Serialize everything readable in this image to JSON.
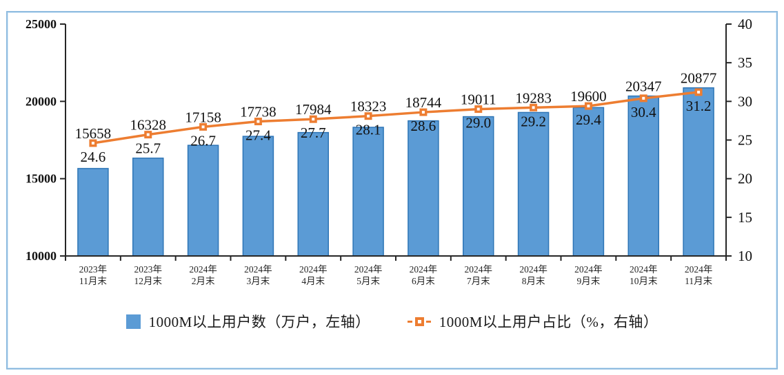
{
  "chart_data": {
    "type": "combo",
    "title": "",
    "categories": [
      "2023年\n11月末",
      "2023年\n12月末",
      "2024年\n2月末",
      "2024年\n3月末",
      "2024年\n4月末",
      "2024年\n5月末",
      "2024年\n6月末",
      "2024年\n7月末",
      "2024年\n8月末",
      "2024年\n9月末",
      "2024年\n10月末",
      "2024年\n11月末"
    ],
    "series": [
      {
        "name": "1000M以上用户数（万户，左轴）",
        "type": "bar",
        "axis": "left",
        "color": "#5B9BD5",
        "border_color": "#2E75B6",
        "values": [
          15658,
          16328,
          17158,
          17738,
          17984,
          18323,
          18744,
          19011,
          19283,
          19600,
          20347,
          20877
        ]
      },
      {
        "name": "1000M以上用户占比（%，右轴）",
        "type": "line",
        "axis": "right",
        "color": "#ED7D31",
        "marker": "square-open",
        "values": [
          24.6,
          25.7,
          26.7,
          27.4,
          27.7,
          28.1,
          28.6,
          29.0,
          29.2,
          29.4,
          30.4,
          31.2
        ]
      }
    ],
    "left_axis": {
      "min": 10000,
      "max": 25000,
      "step": 5000,
      "ticks": [
        10000,
        15000,
        20000,
        25000
      ]
    },
    "right_axis": {
      "min": 10,
      "max": 40,
      "step": 5,
      "ticks": [
        10,
        15,
        20,
        25,
        30,
        35,
        40
      ]
    },
    "grid": false,
    "legend_position": "bottom",
    "frame_color": "#8FBCE0",
    "axis_color": "#262626"
  }
}
